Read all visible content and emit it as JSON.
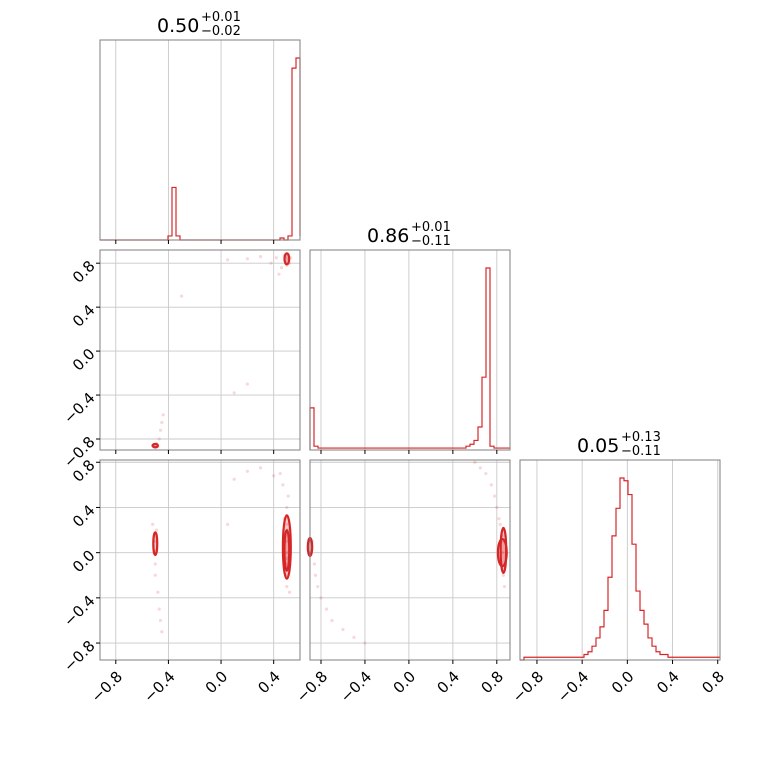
{
  "chart_data": {
    "type": "corner",
    "line_color": "#d62728",
    "grid": true,
    "ticks": [
      -0.8,
      -0.4,
      0.0,
      0.4,
      0.8
    ],
    "tick_labels": [
      "−0.8",
      "−0.4",
      "0.0",
      "0.4",
      "0.8"
    ],
    "axis_ranges": {
      "p1": [
        -0.92,
        0.6
      ],
      "p2": [
        -0.9,
        0.92
      ],
      "p3": [
        -0.95,
        0.82
      ]
    },
    "titles": [
      {
        "value": "0.50",
        "plus": "+0.01",
        "minus": "−0.02"
      },
      {
        "value": "0.86",
        "plus": "+0.01",
        "minus": "−0.11"
      },
      {
        "value": "0.05",
        "plus": "+0.13",
        "minus": "−0.11"
      }
    ],
    "hist_p1": {
      "edges_start": -0.92,
      "bin_width": 0.0304,
      "counts": [
        0,
        0,
        0,
        0,
        0,
        0,
        0,
        0,
        0,
        0,
        0,
        0,
        0,
        0,
        0,
        0,
        0,
        0.02,
        0.26,
        0.02,
        0,
        0,
        0,
        0,
        0,
        0,
        0,
        0,
        0,
        0,
        0,
        0,
        0,
        0,
        0,
        0,
        0,
        0,
        0,
        0,
        0,
        0,
        0,
        0,
        0,
        0.01,
        0,
        0.02,
        0.85,
        0.9,
        0.02
      ]
    },
    "hist_p2": {
      "edges_start": -0.9,
      "bin_width": 0.0364,
      "counts": [
        0.22,
        0.02,
        0.01,
        0.01,
        0.01,
        0.01,
        0.01,
        0.01,
        0.01,
        0.01,
        0.01,
        0.01,
        0.01,
        0.01,
        0.01,
        0.01,
        0.01,
        0.01,
        0.01,
        0.01,
        0.01,
        0.01,
        0.01,
        0.01,
        0.01,
        0.01,
        0.01,
        0.01,
        0.01,
        0.01,
        0.01,
        0.01,
        0.01,
        0.01,
        0.01,
        0.01,
        0.01,
        0.01,
        0.01,
        0.02,
        0.03,
        0.05,
        0.12,
        0.38,
        0.95,
        0.02,
        0.01,
        0.01,
        0.01,
        0.01
      ]
    },
    "hist_p3": {
      "edges_start": -0.95,
      "bin_width": 0.0354,
      "counts": [
        0,
        0.01,
        0.01,
        0.01,
        0.01,
        0.01,
        0.01,
        0.01,
        0.01,
        0.01,
        0.01,
        0.01,
        0.01,
        0.01,
        0.01,
        0.01,
        0.02,
        0.03,
        0.05,
        0.08,
        0.12,
        0.18,
        0.3,
        0.45,
        0.55,
        0.66,
        0.65,
        0.6,
        0.42,
        0.25,
        0.18,
        0.13,
        0.08,
        0.05,
        0.03,
        0.02,
        0.02,
        0.01,
        0.01,
        0.01,
        0.01,
        0.01,
        0.01,
        0.01,
        0.01,
        0.01,
        0.01,
        0.01,
        0.01,
        0.01
      ]
    },
    "scatter_p1_p2": [
      [
        0.5,
        0.86
      ],
      [
        0.49,
        0.85
      ],
      [
        0.51,
        0.84
      ],
      [
        0.5,
        0.83
      ],
      [
        0.52,
        0.8
      ],
      [
        0.5,
        0.78
      ],
      [
        0.48,
        0.87
      ],
      [
        0.51,
        0.88
      ],
      [
        0.53,
        0.85
      ],
      [
        0.49,
        0.81
      ],
      [
        0.46,
        0.76
      ],
      [
        0.44,
        0.7
      ],
      [
        0.42,
        0.85
      ],
      [
        0.38,
        0.8
      ],
      [
        0.3,
        0.86
      ],
      [
        0.2,
        0.84
      ],
      [
        0.05,
        0.83
      ],
      [
        -0.3,
        0.5
      ],
      [
        0.2,
        -0.3
      ],
      [
        0.1,
        -0.38
      ],
      [
        -0.5,
        -0.86
      ],
      [
        -0.49,
        -0.84
      ],
      [
        -0.51,
        -0.85
      ],
      [
        -0.48,
        -0.87
      ],
      [
        -0.5,
        -0.88
      ],
      [
        -0.47,
        -0.8
      ],
      [
        -0.46,
        -0.72
      ],
      [
        -0.45,
        -0.65
      ],
      [
        -0.44,
        -0.58
      ],
      [
        -0.52,
        -0.86
      ]
    ],
    "contours_p1_p2": [
      {
        "cx": 0.5,
        "cy": 0.84,
        "rx": 0.018,
        "ry": 0.05
      },
      {
        "cx": -0.5,
        "cy": -0.86,
        "rx": 0.02,
        "ry": 0.015
      }
    ],
    "scatter_p1_p3": [
      [
        0.5,
        0.0
      ],
      [
        0.5,
        0.1
      ],
      [
        0.49,
        -0.1
      ],
      [
        0.51,
        0.2
      ],
      [
        0.48,
        0.3
      ],
      [
        0.5,
        0.4
      ],
      [
        0.51,
        0.5
      ],
      [
        0.49,
        -0.2
      ],
      [
        0.5,
        -0.3
      ],
      [
        0.47,
        0.6
      ],
      [
        0.45,
        0.7
      ],
      [
        0.3,
        0.75
      ],
      [
        0.1,
        0.65
      ],
      [
        0.05,
        0.25
      ],
      [
        0.2,
        0.72
      ],
      [
        0.4,
        0.68
      ],
      [
        0.52,
        -0.35
      ],
      [
        0.48,
        0.15
      ],
      [
        0.5,
        0.25
      ],
      [
        0.5,
        -0.05
      ],
      [
        -0.5,
        0.1
      ],
      [
        -0.51,
        0.0
      ],
      [
        -0.49,
        0.2
      ],
      [
        -0.5,
        -0.1
      ],
      [
        -0.52,
        0.25
      ],
      [
        -0.5,
        -0.2
      ],
      [
        -0.48,
        -0.35
      ],
      [
        -0.47,
        -0.5
      ],
      [
        -0.46,
        -0.6
      ],
      [
        -0.45,
        -0.7
      ]
    ],
    "contours_p1_p3": [
      {
        "cx": 0.5,
        "cy": 0.02,
        "rx": 0.018,
        "ry": 0.18
      },
      {
        "cx": 0.5,
        "cy": 0.05,
        "rx": 0.03,
        "ry": 0.28
      },
      {
        "cx": -0.5,
        "cy": 0.08,
        "rx": 0.015,
        "ry": 0.1
      }
    ],
    "scatter_p2_p3": [
      [
        0.85,
        0.0
      ],
      [
        0.86,
        0.1
      ],
      [
        0.84,
        -0.1
      ],
      [
        0.86,
        0.2
      ],
      [
        0.82,
        0.3
      ],
      [
        0.8,
        0.4
      ],
      [
        0.78,
        0.5
      ],
      [
        0.75,
        0.6
      ],
      [
        0.7,
        0.7
      ],
      [
        0.65,
        0.75
      ],
      [
        0.86,
        -0.2
      ],
      [
        0.87,
        -0.3
      ],
      [
        0.85,
        0.15
      ],
      [
        0.83,
        0.25
      ],
      [
        0.6,
        0.8
      ],
      [
        -0.88,
        0.1
      ],
      [
        -0.86,
        -0.1
      ],
      [
        -0.85,
        -0.2
      ],
      [
        -0.83,
        -0.3
      ],
      [
        -0.8,
        -0.4
      ],
      [
        -0.75,
        -0.5
      ],
      [
        -0.7,
        -0.6
      ],
      [
        -0.6,
        -0.68
      ],
      [
        -0.5,
        -0.75
      ],
      [
        -0.4,
        -0.8
      ]
    ],
    "contours_p2_p3": [
      {
        "cx": 0.86,
        "cy": 0.02,
        "rx": 0.025,
        "ry": 0.2
      },
      {
        "cx": 0.85,
        "cy": 0.0,
        "rx": 0.04,
        "ry": 0.12
      },
      {
        "cx": -0.9,
        "cy": 0.05,
        "rx": 0.02,
        "ry": 0.08
      }
    ]
  }
}
